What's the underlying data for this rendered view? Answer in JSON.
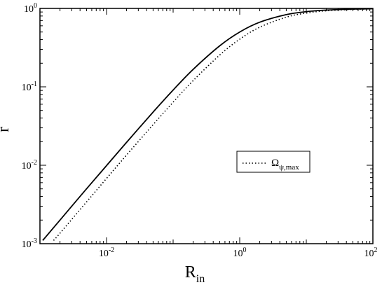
{
  "chart_data": {
    "type": "line",
    "scale": {
      "x": "log",
      "y": "log"
    },
    "xlim": [
      0.001,
      100
    ],
    "ylim": [
      0.001,
      1
    ],
    "grid": false,
    "xlabel": {
      "base": "R",
      "subscript": "in"
    },
    "ylabel": "r",
    "x_ticks": [
      {
        "value": 0.01,
        "base": "10",
        "exp": "-2"
      },
      {
        "value": 1,
        "base": "10",
        "exp": "0"
      },
      {
        "value": 100,
        "base": "10",
        "exp": "2"
      }
    ],
    "y_ticks": [
      {
        "value": 0.001,
        "base": "10",
        "exp": "-3"
      },
      {
        "value": 0.01,
        "base": "10",
        "exp": "-2"
      },
      {
        "value": 0.1,
        "base": "10",
        "exp": "-1"
      },
      {
        "value": 1,
        "base": "10",
        "exp": "0"
      }
    ],
    "series": [
      {
        "style": "solid",
        "color": "#000000",
        "x": [
          0.0011,
          0.002,
          0.005,
          0.01,
          0.02,
          0.05,
          0.1,
          0.2,
          0.5,
          1,
          2,
          5,
          10,
          20,
          50,
          100
        ],
        "y": [
          0.0011,
          0.002,
          0.005,
          0.0099,
          0.0196,
          0.0476,
          0.0909,
          0.167,
          0.333,
          0.5,
          0.667,
          0.833,
          0.909,
          0.952,
          0.98,
          0.99
        ]
      },
      {
        "name": "Ω_ψ,max",
        "style": "dotted",
        "color": "#000000",
        "x": [
          0.0016,
          0.002,
          0.005,
          0.01,
          0.02,
          0.05,
          0.1,
          0.2,
          0.5,
          1,
          2,
          5,
          10,
          20,
          50,
          100
        ],
        "y": [
          0.0011,
          0.00136,
          0.0034,
          0.0068,
          0.0135,
          0.0329,
          0.0637,
          0.12,
          0.254,
          0.405,
          0.576,
          0.773,
          0.872,
          0.932,
          0.971,
          0.985
        ]
      }
    ],
    "legend": {
      "placement": "right-middle",
      "entries": [
        {
          "symbol": "Ω",
          "subscript": "ψ,max",
          "style": "dotted"
        }
      ]
    }
  }
}
